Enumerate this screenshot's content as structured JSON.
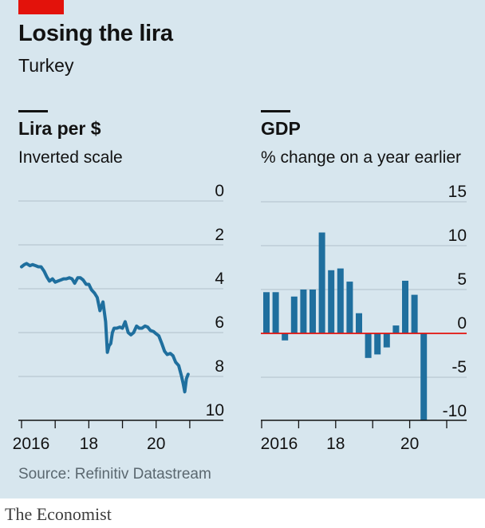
{
  "header": {
    "title": "Losing the lira",
    "subtitle": "Turkey"
  },
  "source": "Source: Refinitiv Datastream",
  "footer": "The Economist",
  "colors": {
    "line": "#1f6f9e",
    "bar": "#1f6f9e",
    "zero": "#e3120b",
    "grid": "#b8c8d1",
    "panel": "#d7e6ee"
  },
  "chart_data": [
    {
      "type": "line",
      "title": "Lira per $",
      "subtitle": "Inverted scale",
      "inverted": true,
      "ylim": [
        0,
        10
      ],
      "yticks": [
        "0",
        "2",
        "4",
        "6",
        "8",
        "10"
      ],
      "xlim": [
        2016,
        2021.05
      ],
      "xticks": [
        "2016",
        "18",
        "20"
      ],
      "x": [
        2016.0,
        2016.08,
        2016.15,
        2016.25,
        2016.33,
        2016.42,
        2016.5,
        2016.58,
        2016.67,
        2016.75,
        2016.83,
        2016.92,
        2017.0,
        2017.08,
        2017.17,
        2017.25,
        2017.33,
        2017.42,
        2017.5,
        2017.58,
        2017.67,
        2017.75,
        2017.83,
        2017.92,
        2018.0,
        2018.08,
        2018.17,
        2018.25,
        2018.33,
        2018.42,
        2018.5,
        2018.55,
        2018.6,
        2018.65,
        2018.7,
        2018.75,
        2018.83,
        2018.92,
        2019.0,
        2019.08,
        2019.17,
        2019.25,
        2019.33,
        2019.42,
        2019.5,
        2019.58,
        2019.67,
        2019.75,
        2019.83,
        2019.92,
        2020.0,
        2020.08,
        2020.17,
        2020.25,
        2020.33,
        2020.42,
        2020.5,
        2020.58,
        2020.67,
        2020.75,
        2020.8,
        2020.85,
        2020.9,
        2020.95
      ],
      "values": [
        3.0,
        2.9,
        2.85,
        2.95,
        2.9,
        2.95,
        3.0,
        3.0,
        3.2,
        3.45,
        3.65,
        3.55,
        3.7,
        3.65,
        3.6,
        3.55,
        3.55,
        3.5,
        3.55,
        3.75,
        3.5,
        3.5,
        3.6,
        3.8,
        3.8,
        4.05,
        4.2,
        4.4,
        5.0,
        4.6,
        5.5,
        6.9,
        6.6,
        6.5,
        6.0,
        5.8,
        5.8,
        5.75,
        5.8,
        5.5,
        6.0,
        6.1,
        6.0,
        5.7,
        5.8,
        5.8,
        5.7,
        5.75,
        5.9,
        5.95,
        6.05,
        6.15,
        6.5,
        6.85,
        7.0,
        6.95,
        7.05,
        7.35,
        7.5,
        7.95,
        8.3,
        8.7,
        8.1,
        7.9
      ]
    },
    {
      "type": "bar",
      "title": "GDP",
      "subtitle": "% change on a year earlier",
      "ylim": [
        -10,
        15
      ],
      "yticks": [
        "15",
        "10",
        "5",
        "0",
        "-5",
        "-10"
      ],
      "xticks": [
        "2016",
        "18",
        "20"
      ],
      "categories": [
        "2016Q1",
        "2016Q2",
        "2016Q3",
        "2016Q4",
        "2017Q1",
        "2017Q2",
        "2017Q3",
        "2017Q4",
        "2018Q1",
        "2018Q2",
        "2018Q3",
        "2018Q4",
        "2019Q1",
        "2019Q2",
        "2019Q3",
        "2019Q4",
        "2020Q1",
        "2020Q2"
      ],
      "values": [
        4.7,
        4.7,
        -0.8,
        4.2,
        5.0,
        5.0,
        11.5,
        7.2,
        7.4,
        5.9,
        2.3,
        -2.8,
        -2.4,
        -1.6,
        0.9,
        6.0,
        4.4,
        -9.9
      ]
    }
  ]
}
